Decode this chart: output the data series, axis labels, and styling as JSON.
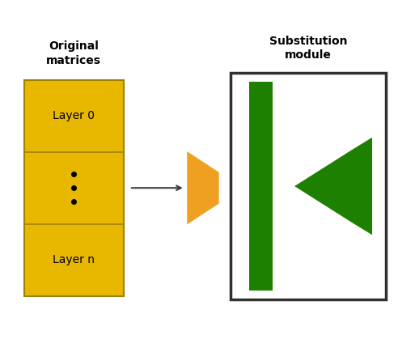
{
  "fig_width": 4.92,
  "fig_height": 4.3,
  "dpi": 100,
  "yellow_color": "#E8B800",
  "orange_color": "#F0A020",
  "green_color": "#1E8000",
  "box_facecolor": "#FFFFFF",
  "box_edgecolor": "#303030",
  "arrow_color": "#404040",
  "text_color": "#000000",
  "label_original_matrices": "Original\nmatrices",
  "label_substitution": "Substitution\nmodule",
  "label_layer0": "Layer 0",
  "label_layern": "Layer n",
  "fontsize_labels": 10,
  "fontsize_layer": 10
}
